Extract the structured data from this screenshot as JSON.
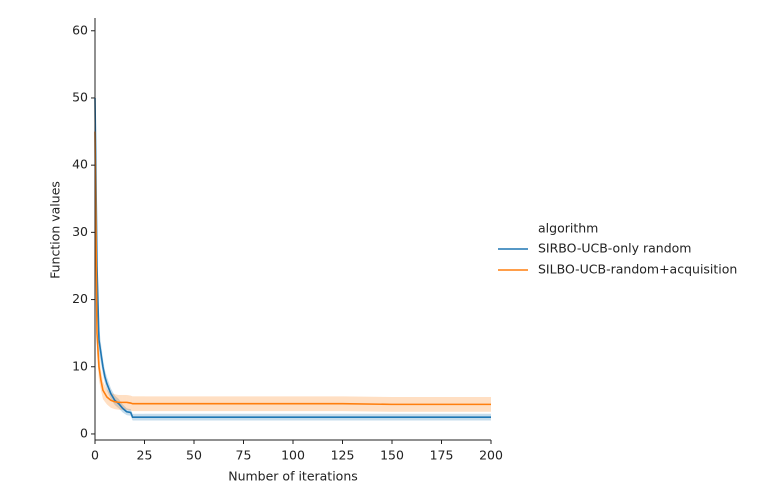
{
  "chart_data": {
    "type": "line",
    "x_label": "Number of iterations",
    "y_label": "Function values",
    "legend_title": "algorithm",
    "legend": "right",
    "x": [
      0,
      1,
      2,
      3,
      4,
      5,
      6,
      8,
      10,
      12,
      14,
      16,
      18,
      19,
      20,
      25,
      50,
      75,
      100,
      125,
      150,
      175,
      200
    ],
    "series": [
      {
        "name": "SIRBO-UCB-only random",
        "color": "#1f77b4",
        "values": [
          50,
          25,
          14,
          12,
          10,
          8.5,
          7.5,
          6,
          5,
          4.5,
          3.8,
          3.3,
          3.2,
          2.5,
          2.5,
          2.5,
          2.5,
          2.5,
          2.5,
          2.5,
          2.5,
          2.5,
          2.5
        ],
        "lower": [
          42,
          20,
          12,
          10.5,
          8.8,
          7.5,
          6.5,
          5.2,
          4.3,
          3.8,
          3.2,
          2.8,
          2.7,
          2,
          2,
          2,
          2,
          2,
          2,
          2,
          2,
          2,
          2
        ],
        "upper": [
          58,
          30,
          16,
          13.5,
          11.2,
          9.5,
          8.5,
          6.8,
          5.7,
          5.2,
          4.4,
          3.8,
          3.7,
          3,
          3,
          3,
          3,
          3,
          3,
          3,
          3,
          3,
          3
        ]
      },
      {
        "name": "SILBO-UCB-random+acquisition",
        "color": "#ff7f0e",
        "values": [
          45,
          15,
          10,
          8,
          6.5,
          6,
          5.5,
          5,
          4.8,
          4.7,
          4.7,
          4.7,
          4.6,
          4.5,
          4.5,
          4.5,
          4.5,
          4.5,
          4.5,
          4.5,
          4.4,
          4.4,
          4.4
        ],
        "lower": [
          38,
          12,
          8,
          6.5,
          5.2,
          4.8,
          4.4,
          3.9,
          3.7,
          3.6,
          3.6,
          3.6,
          3.5,
          3.4,
          3.4,
          3.4,
          3.4,
          3.4,
          3.4,
          3.4,
          3.3,
          3.3,
          3.3
        ],
        "upper": [
          52,
          18,
          12,
          9.5,
          7.8,
          7.2,
          6.6,
          6.1,
          5.9,
          5.8,
          5.8,
          5.8,
          5.7,
          5.6,
          5.6,
          5.6,
          5.6,
          5.6,
          5.6,
          5.6,
          5.5,
          5.5,
          5.5
        ]
      }
    ],
    "xlim": [
      0,
      200
    ],
    "xticks": [
      0,
      25,
      50,
      75,
      100,
      125,
      150,
      175,
      200
    ],
    "ylim": [
      -0.9,
      61.9
    ],
    "yticks": [
      0,
      10,
      20,
      30,
      40,
      50,
      60
    ]
  }
}
